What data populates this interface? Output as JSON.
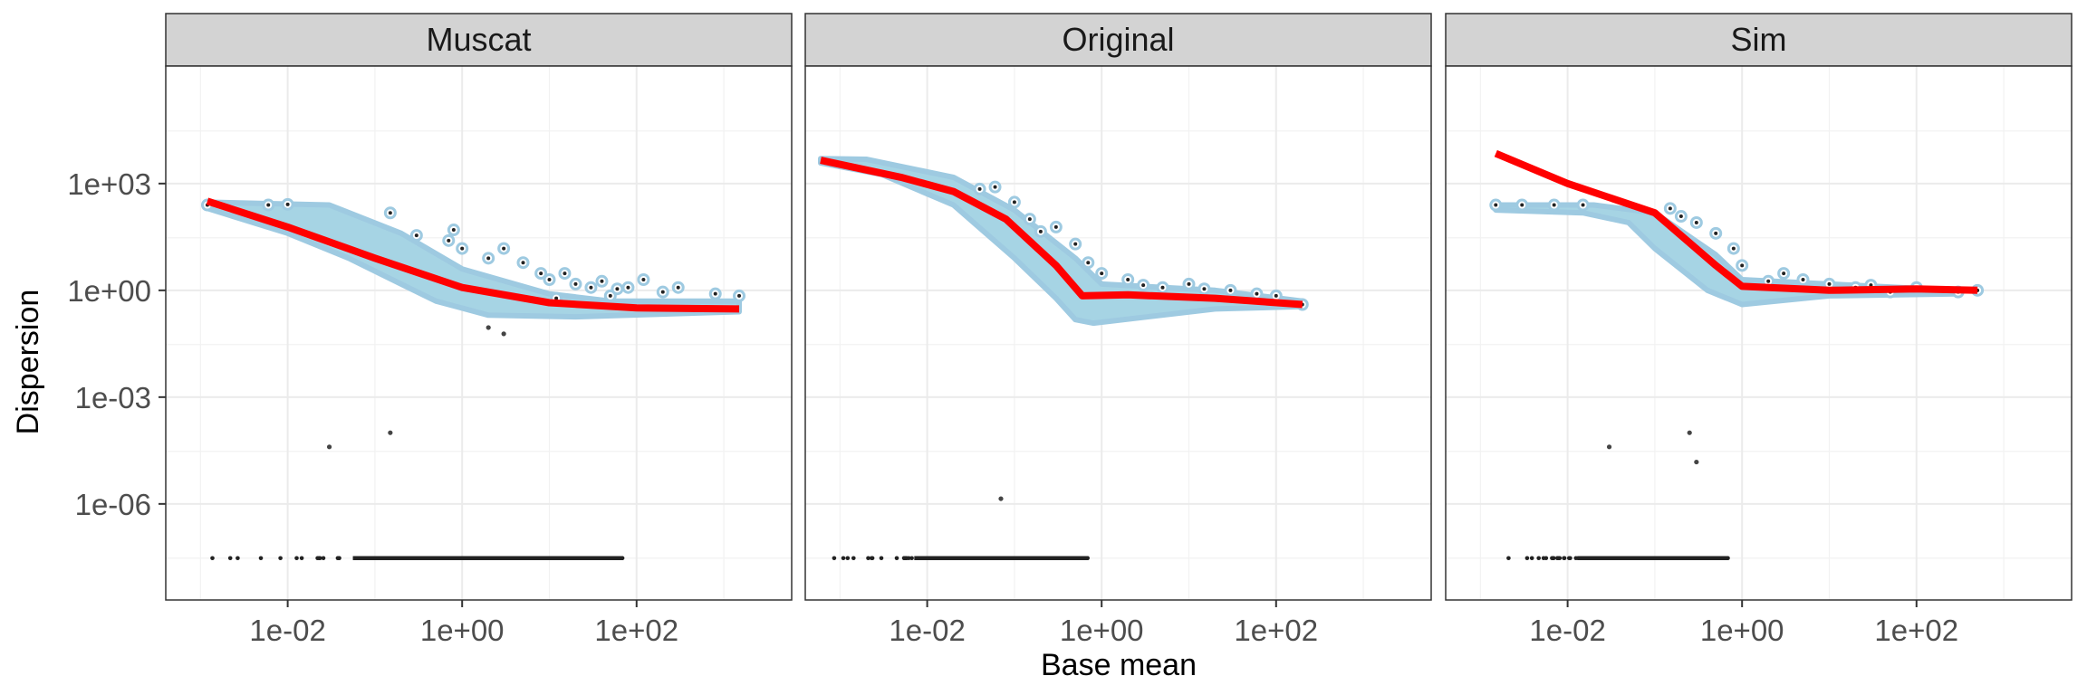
{
  "chart_data": {
    "type": "scatter",
    "xlabel": "Base mean",
    "ylabel": "Dispersion",
    "x_scale": "log10",
    "y_scale": "log10",
    "xlim": [
      0.0004,
      6000
    ],
    "ylim": [
      2e-09,
      2000000
    ],
    "x_ticks": [
      {
        "value": 0.01,
        "label": "1e-02"
      },
      {
        "value": 1,
        "label": "1e+00"
      },
      {
        "value": 100,
        "label": "1e+02"
      }
    ],
    "y_ticks": [
      {
        "value": 1e-06,
        "label": "1e-06"
      },
      {
        "value": 0.001,
        "label": "1e-03"
      },
      {
        "value": 1,
        "label": "1e+00"
      },
      {
        "value": 1000,
        "label": "1e+03"
      }
    ],
    "grid": true,
    "colors": {
      "strip_bg": "#d3d3d3",
      "point_fill": "#a6d4e4",
      "point_outline": "#9ecae1",
      "raw_point": "#222222",
      "trend": "#ff0000",
      "grid": "#ebebeb",
      "panel_border": "#333333"
    },
    "panels": [
      {
        "title": "Muscat",
        "cloud": [
          [
            0.0012,
            300
          ],
          [
            0.03,
            250
          ],
          [
            0.2,
            40
          ],
          [
            1,
            4
          ],
          [
            10,
            0.8
          ],
          [
            50,
            0.5
          ],
          [
            1500,
            0.5
          ],
          [
            1500,
            0.25
          ],
          [
            20,
            0.18
          ],
          [
            2,
            0.2
          ],
          [
            0.5,
            0.5
          ],
          [
            0.2,
            1.5
          ],
          [
            0.05,
            8
          ],
          [
            0.01,
            40
          ],
          [
            0.0012,
            200
          ]
        ],
        "trend": [
          [
            0.0012,
            320
          ],
          [
            0.01,
            60
          ],
          [
            0.1,
            8
          ],
          [
            1,
            1.2
          ],
          [
            10,
            0.45
          ],
          [
            100,
            0.32
          ],
          [
            1500,
            0.3
          ]
        ],
        "outliers": [
          [
            0.0012,
            250
          ],
          [
            0.006,
            250
          ],
          [
            0.01,
            260
          ],
          [
            0.15,
            150
          ],
          [
            0.3,
            35
          ],
          [
            0.7,
            25
          ],
          [
            1,
            15
          ],
          [
            2,
            8
          ],
          [
            3,
            15
          ],
          [
            5,
            6
          ],
          [
            10,
            2
          ],
          [
            15,
            3
          ],
          [
            20,
            1.5
          ],
          [
            30,
            1.2
          ],
          [
            50,
            0.7
          ],
          [
            80,
            1.2
          ],
          [
            120,
            2
          ],
          [
            200,
            0.9
          ],
          [
            300,
            1.2
          ],
          [
            800,
            0.8
          ],
          [
            1500,
            0.7
          ],
          [
            0.8,
            50
          ],
          [
            8,
            3
          ],
          [
            12,
            0.6
          ],
          [
            40,
            1.8
          ],
          [
            60,
            1.1
          ]
        ],
        "raw": [
          [
            0.03,
            4e-05
          ],
          [
            0.15,
            0.0001
          ],
          [
            3,
            0.06
          ],
          [
            2,
            0.09
          ]
        ],
        "zero_band_y": 3e-08,
        "zero_band_xmin": 0.0012,
        "zero_band_xmax": 70
      },
      {
        "title": "Original",
        "cloud": [
          [
            0.0006,
            5000
          ],
          [
            0.002,
            4800
          ],
          [
            0.02,
            1500
          ],
          [
            0.1,
            180
          ],
          [
            0.5,
            8
          ],
          [
            1,
            1.5
          ],
          [
            20,
            1
          ],
          [
            200,
            0.5
          ],
          [
            200,
            0.35
          ],
          [
            20,
            0.3
          ],
          [
            0.8,
            0.12
          ],
          [
            0.5,
            0.15
          ],
          [
            0.3,
            0.6
          ],
          [
            0.1,
            8
          ],
          [
            0.02,
            250
          ],
          [
            0.003,
            1800
          ],
          [
            0.0006,
            3800
          ]
        ],
        "trend": [
          [
            0.0006,
            4500
          ],
          [
            0.005,
            1500
          ],
          [
            0.02,
            600
          ],
          [
            0.08,
            100
          ],
          [
            0.3,
            5
          ],
          [
            0.6,
            0.7
          ],
          [
            2,
            0.75
          ],
          [
            20,
            0.6
          ],
          [
            200,
            0.4
          ]
        ],
        "outliers": [
          [
            0.06,
            800
          ],
          [
            0.1,
            300
          ],
          [
            0.15,
            100
          ],
          [
            0.3,
            60
          ],
          [
            0.5,
            20
          ],
          [
            1,
            3
          ],
          [
            2,
            2
          ],
          [
            5,
            1.2
          ],
          [
            10,
            1.5
          ],
          [
            30,
            1
          ],
          [
            200,
            0.4
          ],
          [
            0.04,
            700
          ],
          [
            0.2,
            45
          ],
          [
            0.7,
            6
          ],
          [
            3,
            1.4
          ],
          [
            15,
            1.1
          ],
          [
            60,
            0.8
          ],
          [
            100,
            0.7
          ]
        ],
        "raw": [
          [
            0.07,
            1.4e-06
          ]
        ],
        "zero_band_y": 3e-08,
        "zero_band_xmin": 0.0006,
        "zero_band_xmax": 0.7
      },
      {
        "title": "Sim",
        "cloud": [
          [
            0.0015,
            250
          ],
          [
            0.02,
            250
          ],
          [
            0.1,
            150
          ],
          [
            0.5,
            10
          ],
          [
            1,
            2
          ],
          [
            10,
            1.5
          ],
          [
            300,
            1
          ],
          [
            300,
            0.8
          ],
          [
            10,
            0.7
          ],
          [
            1,
            0.4
          ],
          [
            0.4,
            1
          ],
          [
            0.1,
            15
          ],
          [
            0.05,
            80
          ],
          [
            0.015,
            150
          ],
          [
            0.0015,
            180
          ]
        ],
        "trend": [
          [
            0.0015,
            7000
          ],
          [
            0.01,
            1000
          ],
          [
            0.1,
            150
          ],
          [
            0.5,
            5
          ],
          [
            1,
            1.3
          ],
          [
            10,
            1
          ],
          [
            100,
            1.1
          ],
          [
            500,
            1
          ]
        ],
        "outliers": [
          [
            0.0015,
            250
          ],
          [
            0.003,
            250
          ],
          [
            0.007,
            250
          ],
          [
            0.015,
            250
          ],
          [
            0.15,
            200
          ],
          [
            0.3,
            80
          ],
          [
            0.5,
            40
          ],
          [
            1,
            5
          ],
          [
            3,
            3
          ],
          [
            5,
            2
          ],
          [
            10,
            1.5
          ],
          [
            20,
            1.2
          ],
          [
            50,
            0.9
          ],
          [
            100,
            1.2
          ],
          [
            300,
            0.9
          ],
          [
            500,
            1
          ],
          [
            0.2,
            120
          ],
          [
            0.8,
            15
          ],
          [
            2,
            1.8
          ],
          [
            30,
            1.4
          ]
        ],
        "raw": [
          [
            0.03,
            4e-05
          ],
          [
            0.25,
            0.0001
          ],
          [
            0.3,
            1.5e-05
          ]
        ],
        "zero_band_y": 3e-08,
        "zero_band_xmin": 0.0015,
        "zero_band_xmax": 0.7
      }
    ]
  }
}
